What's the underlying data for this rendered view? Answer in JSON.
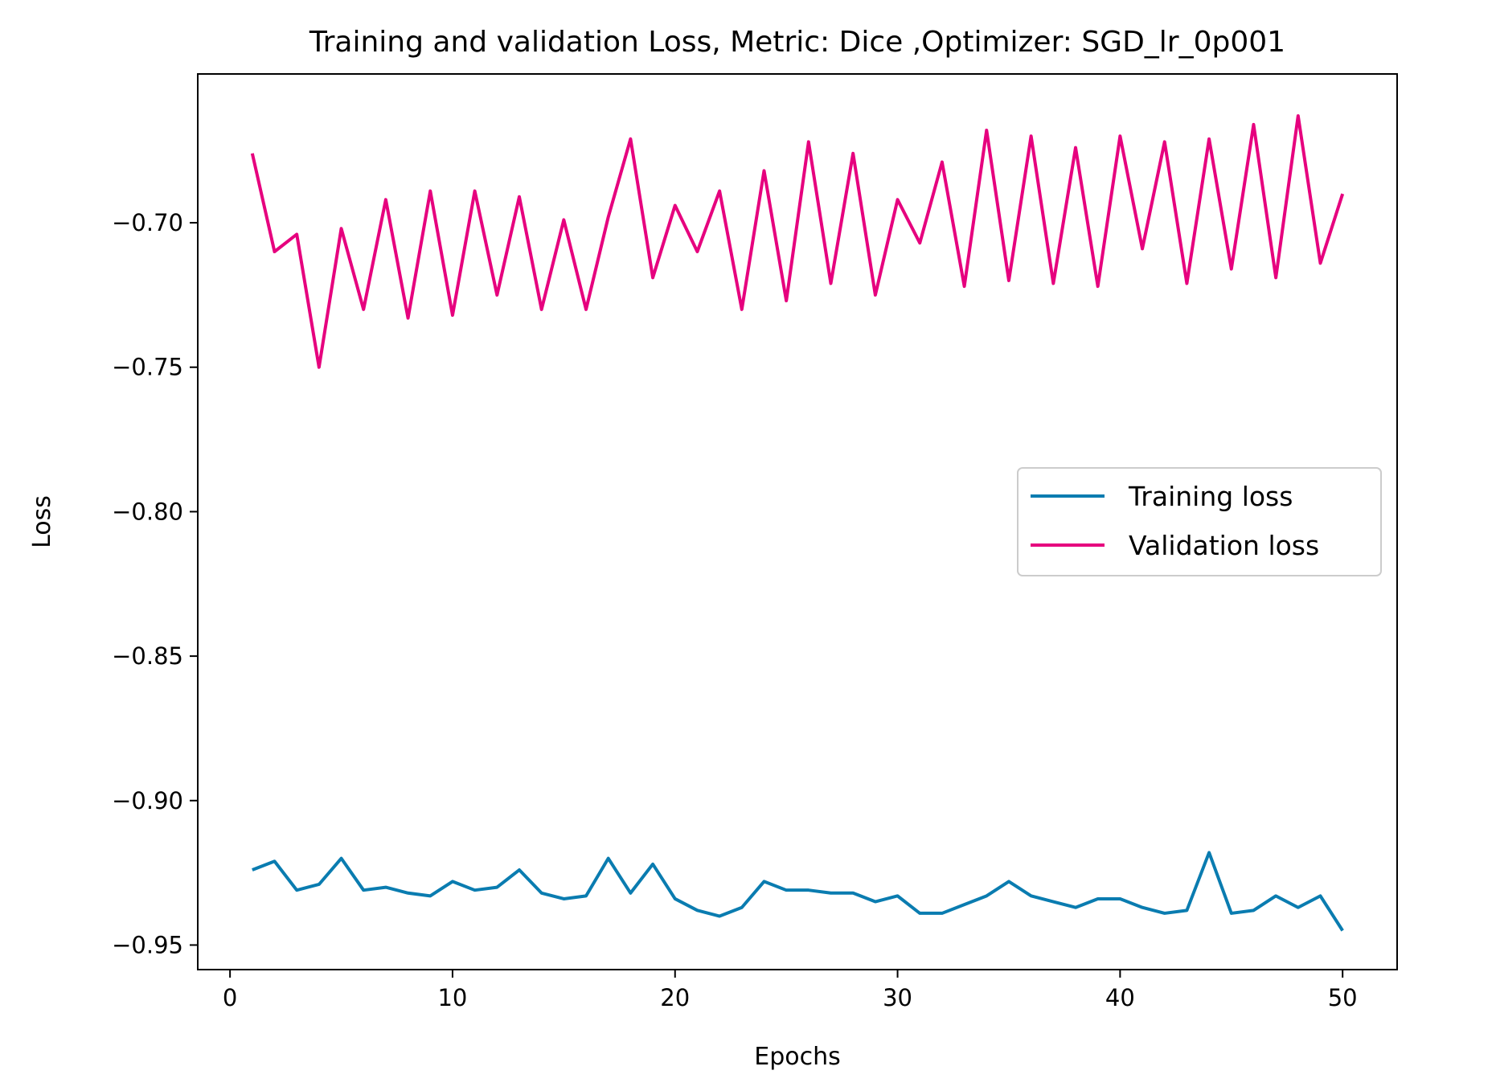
{
  "chart_data": {
    "type": "line",
    "title": "Training and validation Loss, Metric: Dice ,Optimizer: SGD_lr_0p001",
    "xlabel": "Epochs",
    "ylabel": "Loss",
    "xlim": [
      -1.45,
      52.45
    ],
    "ylim": [
      -0.9585,
      -0.6485
    ],
    "xticks": [
      0,
      10,
      20,
      30,
      40,
      50
    ],
    "xtick_labels": [
      "0",
      "10",
      "20",
      "30",
      "40",
      "50"
    ],
    "yticks": [
      -0.7,
      -0.75,
      -0.8,
      -0.85,
      -0.9,
      -0.95
    ],
    "ytick_labels": [
      "−0.70",
      "−0.75",
      "−0.80",
      "−0.85",
      "−0.90",
      "−0.95"
    ],
    "grid": false,
    "legend_position": "center-right",
    "x": [
      1,
      2,
      3,
      4,
      5,
      6,
      7,
      8,
      9,
      10,
      11,
      12,
      13,
      14,
      15,
      16,
      17,
      18,
      19,
      20,
      21,
      22,
      23,
      24,
      25,
      26,
      27,
      28,
      29,
      30,
      31,
      32,
      33,
      34,
      35,
      36,
      37,
      38,
      39,
      40,
      41,
      42,
      43,
      44,
      45,
      46,
      47,
      48,
      49,
      50
    ],
    "series": [
      {
        "name": "Training loss",
        "color": "#0a7cb0",
        "values": [
          -0.924,
          -0.921,
          -0.931,
          -0.929,
          -0.92,
          -0.931,
          -0.93,
          -0.932,
          -0.933,
          -0.928,
          -0.931,
          -0.93,
          -0.924,
          -0.932,
          -0.934,
          -0.933,
          -0.92,
          -0.932,
          -0.922,
          -0.934,
          -0.938,
          -0.94,
          -0.937,
          -0.928,
          -0.931,
          -0.931,
          -0.932,
          -0.932,
          -0.935,
          -0.933,
          -0.939,
          -0.939,
          -0.936,
          -0.933,
          -0.928,
          -0.933,
          -0.935,
          -0.937,
          -0.934,
          -0.934,
          -0.937,
          -0.939,
          -0.938,
          -0.918,
          -0.939,
          -0.938,
          -0.933,
          -0.937,
          -0.933,
          -0.945
        ]
      },
      {
        "name": "Validation loss",
        "color": "#e6007e",
        "values": [
          -0.676,
          -0.71,
          -0.704,
          -0.75,
          -0.702,
          -0.73,
          -0.692,
          -0.733,
          -0.689,
          -0.732,
          -0.689,
          -0.725,
          -0.691,
          -0.73,
          -0.699,
          -0.73,
          -0.698,
          -0.671,
          -0.719,
          -0.694,
          -0.71,
          -0.689,
          -0.73,
          -0.682,
          -0.727,
          -0.672,
          -0.721,
          -0.676,
          -0.725,
          -0.692,
          -0.707,
          -0.679,
          -0.722,
          -0.668,
          -0.72,
          -0.67,
          -0.721,
          -0.674,
          -0.722,
          -0.67,
          -0.709,
          -0.672,
          -0.721,
          -0.671,
          -0.716,
          -0.666,
          -0.719,
          -0.663,
          -0.714,
          -0.69
        ]
      }
    ]
  }
}
